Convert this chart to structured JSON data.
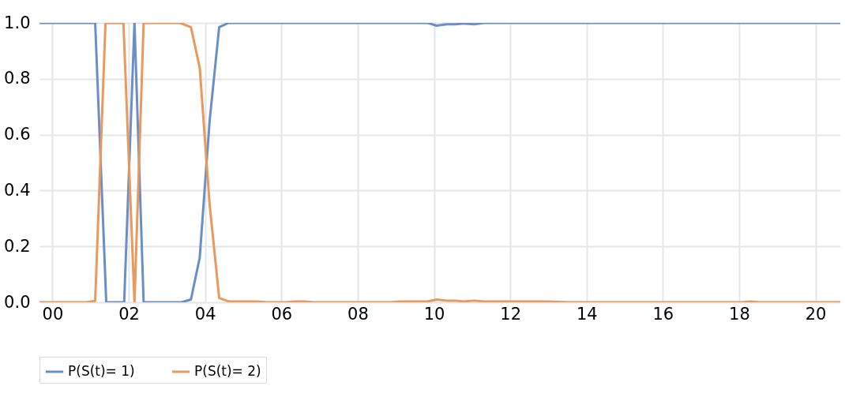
{
  "chart_data": {
    "type": "line",
    "xlim": [
      -0.34,
      20.65
    ],
    "xticks": [
      {
        "value": 0,
        "label": "00"
      },
      {
        "value": 2,
        "label": "02"
      },
      {
        "value": 4,
        "label": "04"
      },
      {
        "value": 6,
        "label": "06"
      },
      {
        "value": 8,
        "label": "08"
      },
      10,
      12,
      14,
      16,
      18,
      20
    ],
    "ylim": [
      0,
      1
    ],
    "yticks": [
      {
        "value": 0,
        "label": "0.0"
      },
      0.2,
      0.4,
      0.6,
      0.8,
      {
        "value": 1,
        "label": "1.0"
      }
    ],
    "grid": true,
    "legend": "bottom",
    "line_style": "solid",
    "series": [
      {
        "name": "P(S(t)= 1)",
        "color": "#6a8fc8",
        "x": [
          -0.34,
          1.12,
          1.41,
          1.88,
          2.15,
          2.39,
          3.38,
          3.63,
          3.86,
          4.12,
          4.37,
          4.62,
          9.84,
          10.07,
          10.33,
          10.56,
          10.77,
          11.05,
          11.32,
          20.65
        ],
        "values": [
          1,
          1,
          0,
          0,
          1,
          0,
          0,
          0.01,
          0.16,
          0.65,
          0.985,
          1,
          1,
          0.99,
          0.995,
          0.995,
          0.998,
          0.995,
          1,
          1
        ]
      },
      {
        "name": "P(S(t)= 2)",
        "color": "#e8995b",
        "x": [
          -0.34,
          0.89,
          1.12,
          1.39,
          1.86,
          2.15,
          2.39,
          3.34,
          3.63,
          3.86,
          4.12,
          4.37,
          4.62,
          5.36,
          5.62,
          6.12,
          6.36,
          6.61,
          6.86,
          8.87,
          9.1,
          9.84,
          10.07,
          10.33,
          10.56,
          10.77,
          11.05,
          11.32,
          12.95,
          13.56,
          18.06,
          18.29,
          18.54,
          20.65
        ],
        "values": [
          0,
          0,
          0.005,
          1,
          1,
          0,
          1,
          1,
          0.985,
          0.84,
          0.35,
          0.015,
          0.003,
          0.003,
          0,
          0,
          0.003,
          0.003,
          0,
          0,
          0.003,
          0.003,
          0.01,
          0.006,
          0.006,
          0.003,
          0.006,
          0.003,
          0.003,
          0,
          0,
          0.003,
          0,
          0
        ]
      }
    ]
  }
}
